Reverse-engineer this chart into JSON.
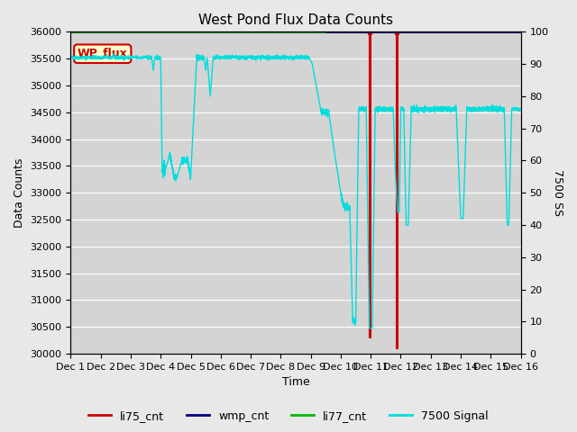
{
  "title": "West Pond Flux Data Counts",
  "xlabel": "Time",
  "ylabel": "Data Counts",
  "ylabel2": "7500 SS",
  "ylim": [
    30000,
    36000
  ],
  "ylim2": [
    0,
    100
  ],
  "yticks": [
    30000,
    30500,
    31000,
    31500,
    32000,
    32500,
    33000,
    33500,
    34000,
    34500,
    35000,
    35500,
    36000
  ],
  "yticks2": [
    0,
    10,
    20,
    30,
    40,
    50,
    60,
    70,
    80,
    90,
    100
  ],
  "xtick_labels": [
    "Dec 1",
    "Dec 2",
    "Dec 3",
    "Dec 4",
    "Dec 5",
    "Dec 6",
    "Dec 7",
    "Dec 8",
    "Dec 9",
    "Dec 10",
    "Dec 11",
    "Dec 12",
    "Dec 13",
    "Dec 14",
    "Dec 15",
    "Dec 16"
  ],
  "bg_color": "#e8e8e8",
  "plot_bg_color": "#d4d4d4",
  "grid_color": "#ffffff",
  "annot_text": "WP_flux",
  "annot_facecolor": "#ffffcc",
  "annot_edgecolor": "#cc0000",
  "annot_textcolor": "#cc0000",
  "li75_color": "#cc0000",
  "wmp_color": "#000080",
  "li77_color": "#00bb00",
  "cyan_color": "#00dddd",
  "title_fontsize": 11,
  "label_fontsize": 9,
  "tick_fontsize": 8
}
